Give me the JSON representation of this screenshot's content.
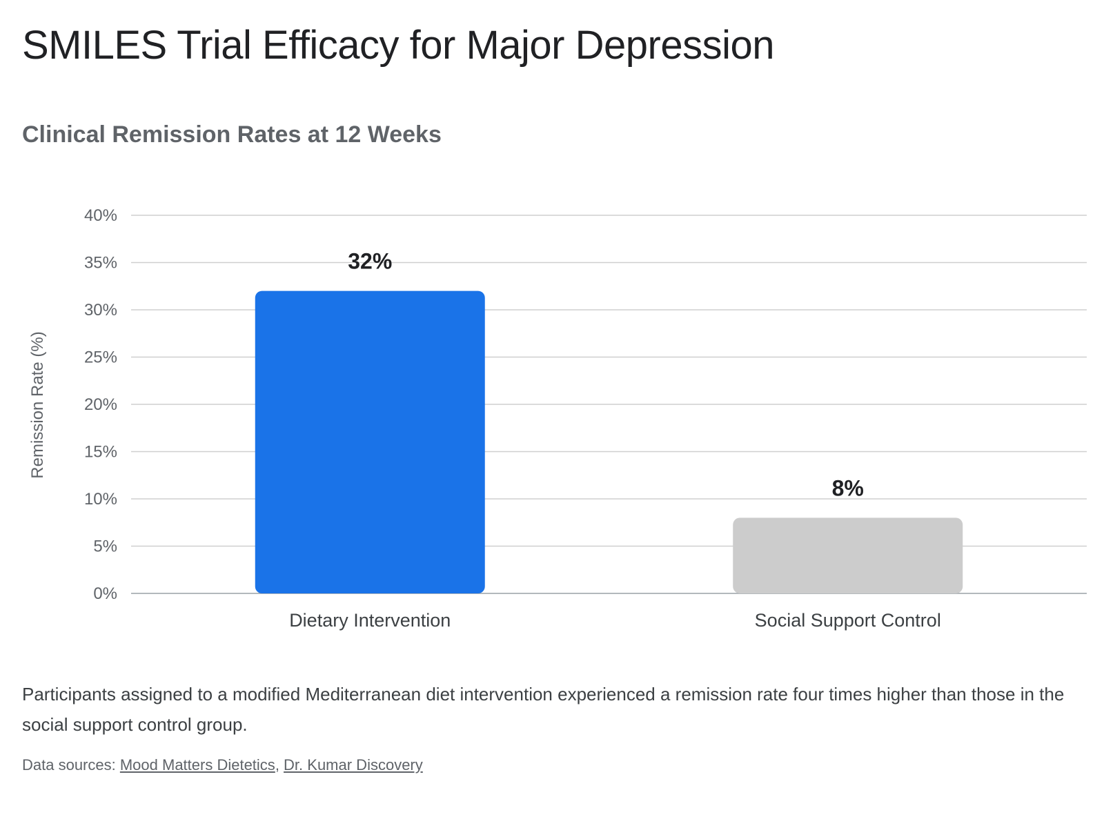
{
  "header": {
    "title": "SMILES Trial Efficacy for Major Depression",
    "subtitle": "Clinical Remission Rates at 12 Weeks"
  },
  "chart_data": {
    "type": "bar",
    "categories": [
      "Dietary Intervention",
      "Social Support Control"
    ],
    "values": [
      32,
      8
    ],
    "data_labels": [
      "32%",
      "8%"
    ],
    "colors": [
      "#1a73e8",
      "#cccccc"
    ],
    "title": "SMILES Trial Efficacy for Major Depression",
    "subtitle": "Clinical Remission Rates at 12 Weeks",
    "xlabel": "",
    "ylabel": "Remission Rate (%)",
    "ylim": [
      0,
      40
    ],
    "yticks": [
      "0%",
      "5%",
      "10%",
      "15%",
      "20%",
      "25%",
      "30%",
      "35%",
      "40%"
    ],
    "grid": true,
    "legend": "none"
  },
  "caption": "Participants assigned to a modified Mediterranean diet intervention experienced a remission rate four times higher than those in the social support control group.",
  "sources": {
    "prefix": "Data sources: ",
    "links": [
      "Mood Matters Dietetics",
      "Dr. Kumar Discovery"
    ],
    "separator": ", "
  }
}
